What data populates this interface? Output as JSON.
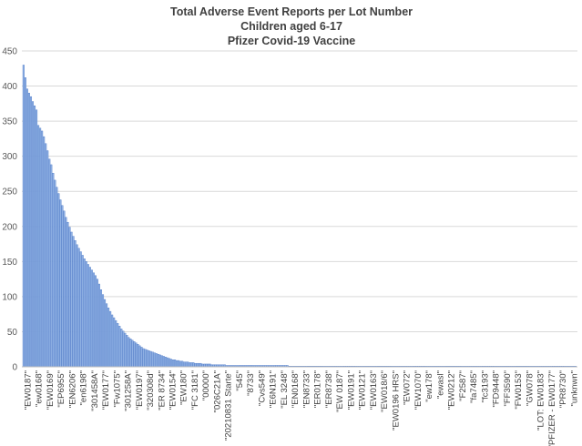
{
  "chart_data": {
    "type": "bar",
    "title_lines": [
      "Total Adverse Event Reports per Lot Number",
      "Children aged 6-17",
      "Pfizer Covid-19 Vaccine"
    ],
    "xlabel": "",
    "ylabel": "",
    "ylim": [
      0,
      450
    ],
    "yticks": [
      0,
      50,
      100,
      150,
      200,
      250,
      300,
      350,
      400,
      450
    ],
    "grid": true,
    "legend": "none",
    "bar_color": "#8fb0e3",
    "bar_edge_color": "#4472c4",
    "categories": [
      "\"EW0187\"",
      "\"ew0168\"",
      "\"EW0169\"",
      "\"EP6955\"",
      "\"EN6206\"",
      "\"en6198\"",
      "\"301458A\"",
      "\"EW0177\"",
      "\"Fw1075\"",
      "\"301258A\"",
      "\"EW0197\"",
      "\"320308d\"",
      "\"ER 8734\"",
      "\"EW0154\"",
      "\"EW180\"",
      "\"FC 3181\"",
      "\"00000\"",
      "\"026C21A\"",
      "\"20210831 Starte\"",
      "\"545\"",
      "\"8733\"",
      "\"Cvs549\"",
      "\"E6N191\"",
      "\"EL 3248\"",
      "\"EN0168\"",
      "\"EN8733\"",
      "\"ER0178\"",
      "\"ER8738\"",
      "\"EW 0187\"",
      "\"EW0191\"",
      "\"EW0121\"",
      "\"EW0163\"",
      "\"EW018/6\"",
      "\"EW0196 HRS\"",
      "\"EW072\"",
      "\"EW1070\"",
      "\"ew178\"",
      "\"ewasl\"",
      "\"EW0212\"",
      "\"F2587\"",
      "\"fa7485\"",
      "\"fc3193\"",
      "\"FD9448\"",
      "\"FF3590\"",
      "\"FW0153\"",
      "\"GW078\"",
      "\"LOT: EW0183\"",
      "\"PFIZER - EW0177\"",
      "\"PR8730\"",
      "\"unknwn\""
    ],
    "bar_count": 300,
    "bar_values_head": [
      430,
      412,
      396,
      390,
      385,
      378,
      372,
      366,
      344,
      340,
      336,
      328,
      318,
      308,
      296,
      288,
      276,
      266,
      256,
      247,
      238,
      230,
      222,
      213,
      206,
      199,
      192,
      186,
      180,
      174,
      169,
      164,
      159,
      154,
      150,
      146,
      142,
      138,
      134,
      130,
      125,
      118,
      110,
      103,
      96,
      90,
      84,
      79,
      74,
      70,
      66,
      62,
      58,
      54,
      51,
      48,
      45,
      42,
      40,
      38,
      36,
      34,
      32,
      30,
      28,
      26,
      25,
      24,
      23,
      22,
      21,
      20,
      19,
      18,
      17,
      16,
      15,
      14,
      13,
      12,
      11,
      10,
      10,
      9,
      9,
      8,
      8,
      7,
      7,
      7,
      6,
      6,
      6,
      5,
      5,
      5,
      5,
      4,
      4,
      4,
      4,
      4,
      3,
      3,
      3,
      3,
      3,
      3,
      3,
      3,
      2,
      2,
      2,
      2,
      2,
      2,
      2,
      2,
      2,
      2,
      2,
      2,
      2,
      2,
      2,
      2,
      2,
      2,
      2,
      2,
      2,
      2,
      2,
      2,
      2,
      2,
      2,
      2,
      2,
      2,
      2,
      2,
      2,
      2
    ],
    "bar_values_tail_value": 1
  }
}
